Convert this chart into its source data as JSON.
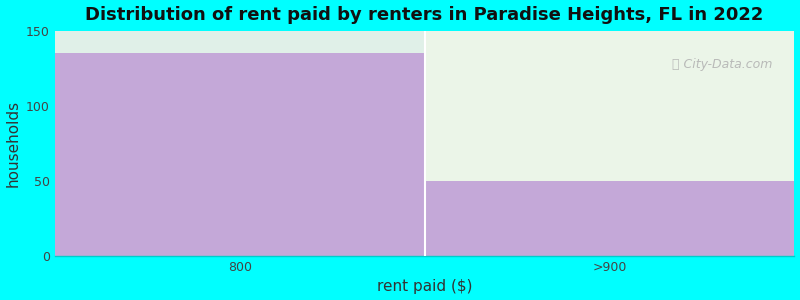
{
  "categories": [
    "800",
    ">900"
  ],
  "values": [
    135,
    50
  ],
  "bar_color": "#C4A8D8",
  "title": "Distribution of rent paid by renters in Paradise Heights, FL in 2022",
  "xlabel": "rent paid ($)",
  "ylabel": "households",
  "ylim": [
    0,
    150
  ],
  "yticks": [
    0,
    50,
    100,
    150
  ],
  "background_color": "#00FFFF",
  "bar2_bg_color": "#EBF5E8",
  "bar1_top_color": "#E0F0E8",
  "watermark": "City-Data.com",
  "title_fontsize": 13,
  "label_fontsize": 11,
  "tick_fontsize": 9
}
